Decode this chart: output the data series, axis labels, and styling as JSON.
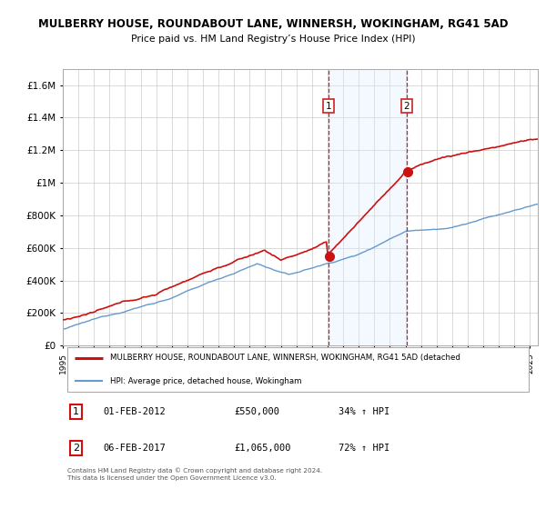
{
  "title": "MULBERRY HOUSE, ROUNDABOUT LANE, WINNERSH, WOKINGHAM, RG41 5AD",
  "subtitle": "Price paid vs. HM Land Registry’s House Price Index (HPI)",
  "ylim": [
    0,
    1700000
  ],
  "yticks": [
    0,
    200000,
    400000,
    600000,
    800000,
    1000000,
    1200000,
    1400000,
    1600000
  ],
  "xlim_start": 1995.0,
  "xlim_end": 2025.5,
  "vline1_x": 2012.08,
  "vline2_x": 2017.08,
  "vline_color": "#cc2222",
  "shade_color": "#ddeeff",
  "red_line_color": "#cc1111",
  "blue_line_color": "#6699cc",
  "marker1_label": "1",
  "marker2_label": "2",
  "legend_red_label": "MULBERRY HOUSE, ROUNDABOUT LANE, WINNERSH, WOKINGHAM, RG41 5AD (detached",
  "legend_blue_label": "HPI: Average price, detached house, Wokingham",
  "annotation1_num": "1",
  "annotation1_date": "01-FEB-2012",
  "annotation1_price": "£550,000",
  "annotation1_hpi": "34% ↑ HPI",
  "annotation2_num": "2",
  "annotation2_date": "06-FEB-2017",
  "annotation2_price": "£1,065,000",
  "annotation2_hpi": "72% ↑ HPI",
  "footer": "Contains HM Land Registry data © Crown copyright and database right 2024.\nThis data is licensed under the Open Government Licence v3.0.",
  "background_color": "#ffffff",
  "grid_color": "#cccccc"
}
